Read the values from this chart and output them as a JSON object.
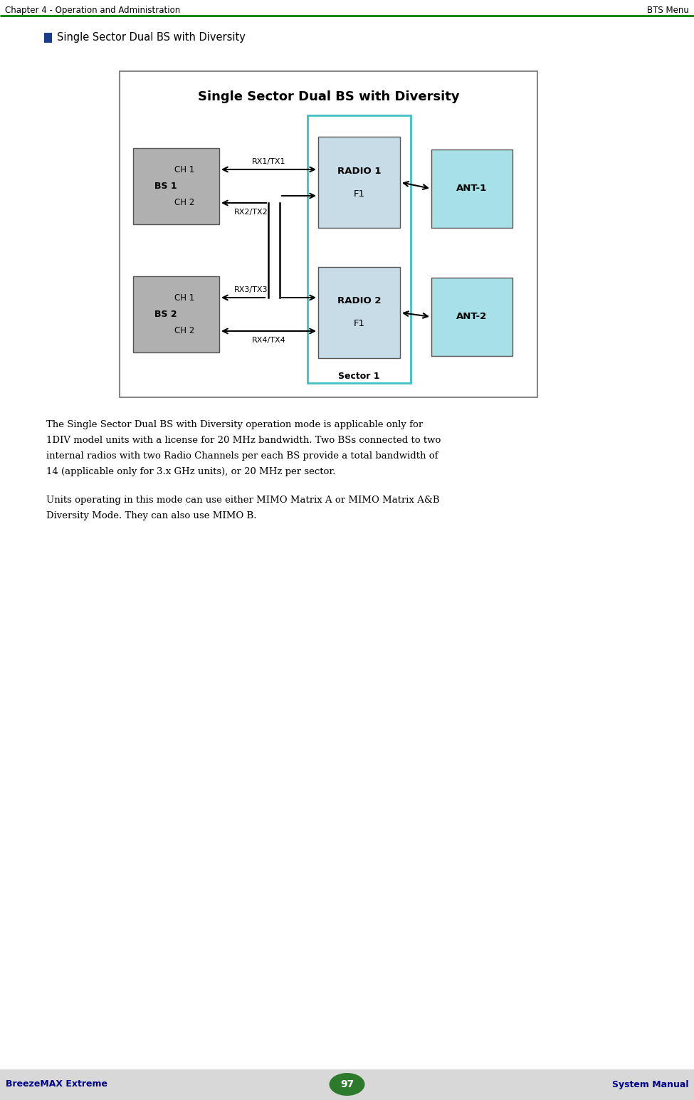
{
  "header_left": "Chapter 4 - Operation and Administration",
  "header_right": "BTS Menu",
  "header_line_color": "#008000",
  "bullet_text": "Single Sector Dual BS with Diversity",
  "bullet_color": "#1a3a8a",
  "diagram_title": "Single Sector Dual BS with Diversity",
  "footer_left": "BreezeMAX Extreme",
  "footer_right": "System Manual",
  "footer_page": "97",
  "footer_bg": "#d8d8d8",
  "footer_text_color": "#00008B",
  "page_bg": "#ffffff",
  "diagram_border_color": "#888888",
  "diagram_bg": "#ffffff",
  "bs1_line1": "CH 1",
  "bs1_line2": "BS 1",
  "bs1_line3": "CH 2",
  "bs2_line1": "CH 1",
  "bs2_line2": "BS 2",
  "bs2_line3": "CH 2",
  "radio1_line1": "RADIO 1",
  "radio1_line2": "F1",
  "radio2_line1": "RADIO 2",
  "radio2_line2": "F1",
  "ant1_label": "ANT-1",
  "ant2_label": "ANT-2",
  "sector_label": "Sector 1",
  "rx1tx1_label": "RX1/TX1",
  "rx2tx2_label": "RX2/TX2",
  "rx3tx3_label": "RX3/TX3",
  "rx4tx4_label": "RX4/TX4",
  "gray_box_color": "#b0b0b0",
  "radio_box_color": "#c8dce8",
  "sector_border_color": "#40c0c0",
  "ant_box_color": "#a8e0e8",
  "body_text1_lines": [
    "The Single Sector Dual BS with Diversity operation mode is applicable only for",
    "1DIV model units with a license for 20 MHz bandwidth. Two BSs connected to two",
    "internal radios with two Radio Channels per each BS provide a total bandwidth of",
    "14 (applicable only for 3.x GHz units), or 20 MHz per sector."
  ],
  "body_text2_lines": [
    "Units operating in this mode can use either MIMO Matrix A or MIMO Matrix A&B",
    "Diversity Mode. They can also use MIMO B."
  ]
}
